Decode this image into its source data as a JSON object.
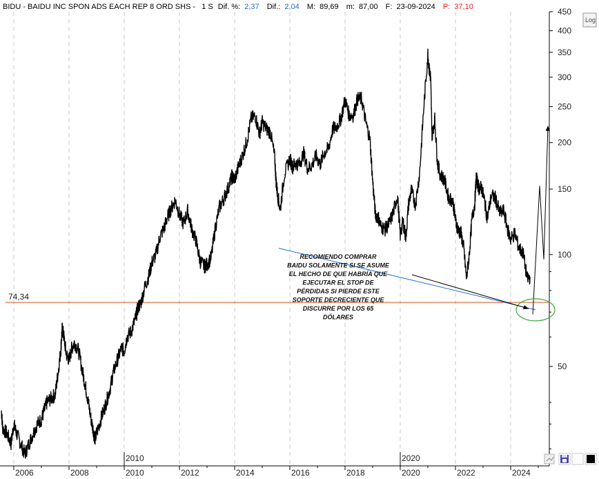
{
  "header": {
    "symbol": "BIDU - BAIDU INC SPON ADS EACH REP 8 ORD SHS -",
    "period": "1 S",
    "pct_label": "Dif. %:",
    "pct_value": "2,37",
    "diff_label": "Dif.:",
    "diff_value": "2,04",
    "max_label": "M:",
    "max_value": "89,69",
    "min_label": "m:",
    "min_value": "87,00",
    "date_label": "F:",
    "date_value": "23-09-2024",
    "price_label": "P:",
    "price_value": "37,10"
  },
  "controls": {
    "log_label": "Log",
    "log_sub": "..."
  },
  "annotation": {
    "support_value_label": "74,34",
    "note_lines": [
      "RECOMIENDO COMPRAR",
      "BAIDU SOLAMENTE SI SE ASUME",
      "EL HECHO DE QUE HABRÍA QUE",
      "EJECUTAR EL STOP DE",
      "PÉRDIDAS SI PIERDE ESTE",
      "SOPORTE DECRECIENTE QUE",
      "DISCURRE POR LOS 65",
      "DÓLARES"
    ]
  },
  "colors": {
    "price": "#000000",
    "support_line": "#e0501e",
    "trend_line": "#1f6fd1",
    "ellipse": "#3aa83a",
    "pct_value": "#1f6fd1",
    "price_value": "#e02020"
  },
  "chart_data": {
    "type": "line",
    "scale": "log",
    "ylim": [
      27,
      450
    ],
    "xlim": [
      2005.5,
      2025.4
    ],
    "y_ticks": [
      450,
      400,
      350,
      300,
      250,
      200,
      150,
      100,
      50
    ],
    "x_ticks": [
      "2006",
      "2008",
      "2010",
      "2012",
      "2014",
      "2016",
      "2018",
      "2020",
      "2022",
      "2024"
    ],
    "x_tick_values": [
      2006,
      2008,
      2010,
      2012,
      2014,
      2016,
      2018,
      2020,
      2022,
      2024
    ],
    "x_major_labels": [
      "2010",
      "2020"
    ],
    "x_major_values": [
      2010,
      2020
    ],
    "series": [
      {
        "x": [
          2005.55,
          2005.6,
          2005.75,
          2005.9,
          2006.0,
          2006.1,
          2006.25,
          2006.4,
          2006.55,
          2006.7,
          2006.85,
          2007.0,
          2007.1,
          2007.2,
          2007.35,
          2007.5,
          2007.6,
          2007.7,
          2007.75,
          2007.8,
          2007.9,
          2008.0,
          2008.1,
          2008.2,
          2008.35,
          2008.5,
          2008.6,
          2008.7,
          2008.8,
          2008.9,
          2008.95,
          2009.05,
          2009.2,
          2009.35,
          2009.5,
          2009.6,
          2009.75,
          2009.9,
          2010.0,
          2010.1,
          2010.25,
          2010.4,
          2010.5,
          2010.6,
          2010.75,
          2010.9,
          2011.0,
          2011.15,
          2011.3,
          2011.45,
          2011.55,
          2011.7,
          2011.85,
          2012.0,
          2012.15,
          2012.3,
          2012.45,
          2012.6,
          2012.75,
          2012.9,
          2013.0,
          2013.15,
          2013.3,
          2013.45,
          2013.6,
          2013.75,
          2013.9,
          2014.0,
          2014.15,
          2014.3,
          2014.45,
          2014.6,
          2014.75,
          2014.9,
          2015.0,
          2015.15,
          2015.3,
          2015.45,
          2015.5,
          2015.55,
          2015.65,
          2015.8,
          2016.0,
          2016.1,
          2016.2,
          2016.35,
          2016.5,
          2016.65,
          2016.8,
          2016.95,
          2017.1,
          2017.25,
          2017.4,
          2017.55,
          2017.7,
          2017.85,
          2018.0,
          2018.15,
          2018.3,
          2018.45,
          2018.6,
          2018.75,
          2018.9,
          2019.0,
          2019.1,
          2019.2,
          2019.3,
          2019.45,
          2019.6,
          2019.75,
          2019.9,
          2020.0,
          2020.1,
          2020.2,
          2020.3,
          2020.4,
          2020.55,
          2020.7,
          2020.85,
          2021.0,
          2021.05,
          2021.1,
          2021.15,
          2021.25,
          2021.35,
          2021.45,
          2021.6,
          2021.75,
          2021.9,
          2022.0,
          2022.1,
          2022.2,
          2022.3,
          2022.4,
          2022.5,
          2022.6,
          2022.7,
          2022.75,
          2022.85,
          2022.95,
          2023.05,
          2023.15,
          2023.3,
          2023.45,
          2023.6,
          2023.75,
          2023.9,
          2024.0,
          2024.15,
          2024.3,
          2024.45,
          2024.6,
          2024.7
        ],
        "y": [
          38,
          34,
          33,
          31,
          35,
          33,
          31,
          29,
          31,
          33,
          35,
          36,
          38,
          40,
          41,
          42,
          48,
          55,
          63,
          61,
          54,
          52,
          56,
          58,
          55,
          48,
          44,
          40,
          36,
          33,
          32,
          34,
          37,
          40,
          44,
          48,
          52,
          56,
          55,
          60,
          62,
          67,
          72,
          74,
          82,
          88,
          95,
          100,
          112,
          118,
          125,
          133,
          140,
          128,
          121,
          131,
          117,
          109,
          96,
          93,
          94,
          98,
          118,
          134,
          141,
          150,
          162,
          159,
          173,
          186,
          203,
          232,
          236,
          211,
          227,
          218,
          213,
          183,
          158,
          146,
          132,
          164,
          181,
          172,
          176,
          175,
          187,
          170,
          174,
          184,
          175,
          188,
          193,
          217,
          221,
          232,
          261,
          237,
          237,
          262,
          262,
          227,
          205,
          158,
          128,
          126,
          119,
          117,
          121,
          130,
          144,
          113,
          123,
          111,
          136,
          149,
          136,
          165,
          247,
          346,
          314,
          300,
          209,
          231,
          176,
          164,
          159,
          142,
          140,
          124,
          116,
          114,
          104,
          86,
          100,
          125,
          137,
          161,
          151,
          151,
          140,
          125,
          144,
          142,
          129,
          131,
          116,
          110,
          114,
          104,
          101,
          86,
          87
        ]
      }
    ],
    "support_level": 74.34,
    "trendline": [
      [
        2015.6,
        104
      ],
      [
        2024.9,
        71
      ]
    ],
    "projection": [
      [
        2024.8,
        69
      ],
      [
        2025.05,
        153
      ],
      [
        2025.2,
        97
      ],
      [
        2025.35,
        222
      ]
    ],
    "arrow_to_support": [
      [
        2025.05,
        71
      ],
      [
        2024.7,
        69.5
      ]
    ]
  }
}
